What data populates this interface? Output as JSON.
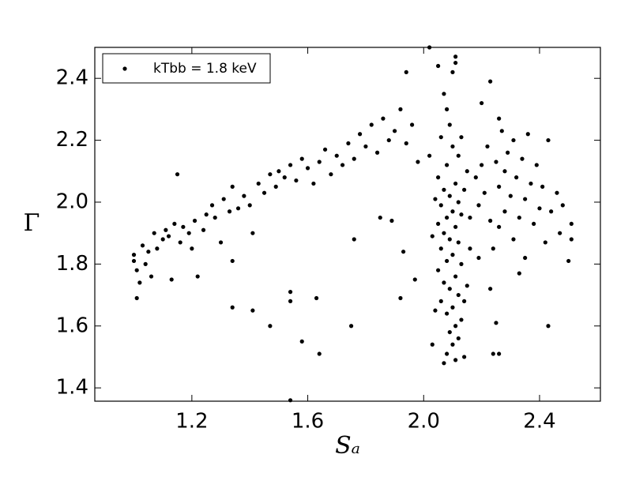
{
  "chart_data": {
    "type": "scatter",
    "xlabel": "Sₐ",
    "ylabel": "Γ",
    "xlim": [
      0.865,
      2.61
    ],
    "ylim": [
      1.357,
      2.5
    ],
    "xticks": [
      {
        "value": 1.2,
        "label": "1.2"
      },
      {
        "value": 1.6,
        "label": "1.6"
      },
      {
        "value": 2.0,
        "label": "2.0"
      },
      {
        "value": 2.4,
        "label": "2.4"
      }
    ],
    "yticks": [
      {
        "value": 1.4,
        "label": "1.4"
      },
      {
        "value": 1.6,
        "label": "1.6"
      },
      {
        "value": 1.8,
        "label": "1.8"
      },
      {
        "value": 2.0,
        "label": "2.0"
      },
      {
        "value": 2.2,
        "label": "2.2"
      },
      {
        "value": 2.4,
        "label": "2.4"
      }
    ],
    "legend": "upper left",
    "x": [
      1.0,
      1.0,
      1.01,
      1.01,
      1.02,
      1.03,
      1.04,
      1.05,
      1.06,
      1.07,
      1.08,
      1.1,
      1.11,
      1.12,
      1.13,
      1.14,
      1.15,
      1.16,
      1.17,
      1.19,
      1.2,
      1.21,
      1.22,
      1.24,
      1.25,
      1.27,
      1.28,
      1.3,
      1.31,
      1.33,
      1.34,
      1.36,
      1.38,
      1.4,
      1.41,
      1.43,
      1.45,
      1.47,
      1.49,
      1.5,
      1.52,
      1.54,
      1.56,
      1.58,
      1.6,
      1.62,
      1.64,
      1.66,
      1.68,
      1.7,
      1.72,
      1.74,
      1.76,
      1.78,
      1.8,
      1.82,
      1.84,
      1.86,
      1.88,
      1.9,
      1.92,
      1.94,
      1.96,
      1.98,
      1.34,
      1.34,
      1.41,
      1.47,
      1.54,
      1.54,
      1.58,
      1.63,
      1.64,
      1.54,
      1.75,
      1.76,
      1.93,
      1.92,
      1.97,
      1.85,
      1.89,
      2.02,
      1.94,
      2.05,
      2.07,
      2.08,
      2.1,
      2.11,
      2.11,
      2.09,
      2.06,
      2.1,
      2.12,
      2.08,
      2.05,
      2.11,
      2.07,
      2.09,
      2.12,
      2.06,
      2.1,
      2.08,
      2.13,
      2.05,
      2.11,
      2.07,
      2.09,
      2.12,
      2.06,
      2.1,
      2.08,
      2.13,
      2.05,
      2.11,
      2.07,
      2.09,
      2.12,
      2.06,
      2.1,
      2.08,
      2.13,
      2.11,
      2.09,
      2.12,
      2.1,
      2.08,
      2.11,
      2.07,
      2.14,
      2.03,
      2.04,
      2.15,
      2.14,
      2.15,
      2.16,
      2.04,
      2.03,
      2.02,
      2.13,
      2.16,
      2.14,
      2.18,
      2.19,
      2.2,
      2.21,
      2.22,
      2.23,
      2.23,
      2.24,
      2.25,
      2.26,
      2.26,
      2.27,
      2.28,
      2.28,
      2.29,
      2.3,
      2.31,
      2.31,
      2.32,
      2.33,
      2.34,
      2.35,
      2.35,
      2.36,
      2.37,
      2.38,
      2.39,
      2.4,
      2.41,
      2.42,
      2.43,
      2.43,
      2.44,
      2.46,
      2.47,
      2.48,
      2.5,
      2.51,
      2.51,
      2.24,
      2.26,
      2.25,
      2.23,
      2.33,
      2.19,
      2.2,
      2.26
    ],
    "series": [
      {
        "name": "kTbb = 1.8 keV",
        "color": "#000000",
        "values": [
          1.81,
          1.83,
          1.69,
          1.78,
          1.74,
          1.86,
          1.8,
          1.84,
          1.76,
          1.9,
          1.85,
          1.88,
          1.91,
          1.89,
          1.75,
          1.93,
          2.09,
          1.87,
          1.92,
          1.9,
          1.85,
          1.94,
          1.76,
          1.91,
          1.96,
          1.99,
          1.95,
          1.87,
          2.01,
          1.97,
          2.05,
          1.98,
          2.02,
          1.99,
          1.9,
          2.06,
          2.03,
          2.09,
          2.05,
          2.1,
          2.08,
          2.12,
          2.07,
          2.14,
          2.11,
          2.06,
          2.13,
          2.17,
          2.09,
          2.15,
          2.12,
          2.19,
          2.14,
          2.22,
          2.18,
          2.25,
          2.16,
          2.27,
          2.2,
          2.23,
          2.3,
          2.19,
          2.25,
          2.13,
          1.81,
          1.66,
          1.65,
          1.6,
          1.71,
          1.68,
          1.55,
          1.69,
          1.51,
          1.36,
          1.6,
          1.88,
          1.84,
          1.69,
          1.75,
          1.95,
          1.94,
          2.5,
          2.42,
          2.44,
          2.35,
          2.3,
          2.42,
          2.47,
          2.45,
          2.25,
          2.21,
          2.18,
          2.15,
          2.12,
          2.08,
          2.06,
          2.04,
          2.02,
          2.0,
          1.99,
          1.97,
          1.95,
          1.96,
          1.93,
          1.92,
          1.9,
          1.88,
          1.87,
          1.85,
          1.83,
          1.81,
          1.8,
          1.78,
          1.76,
          1.74,
          1.72,
          1.7,
          1.68,
          1.66,
          1.64,
          1.62,
          1.6,
          1.58,
          1.56,
          1.54,
          1.51,
          1.49,
          1.48,
          1.5,
          1.54,
          1.65,
          1.73,
          2.04,
          2.1,
          1.95,
          2.01,
          1.89,
          2.15,
          2.21,
          1.85,
          1.68,
          2.08,
          1.99,
          2.12,
          2.03,
          2.18,
          2.39,
          1.94,
          1.85,
          2.13,
          2.05,
          1.92,
          2.23,
          2.1,
          1.97,
          2.16,
          2.02,
          1.88,
          2.2,
          2.08,
          1.95,
          2.14,
          2.01,
          1.82,
          2.22,
          2.06,
          1.93,
          2.12,
          1.98,
          2.05,
          1.87,
          2.2,
          1.6,
          1.97,
          2.03,
          1.9,
          1.99,
          1.81,
          1.93,
          1.88,
          1.51,
          1.51,
          1.61,
          1.72,
          1.77,
          1.82,
          2.32,
          2.27
        ]
      }
    ]
  }
}
